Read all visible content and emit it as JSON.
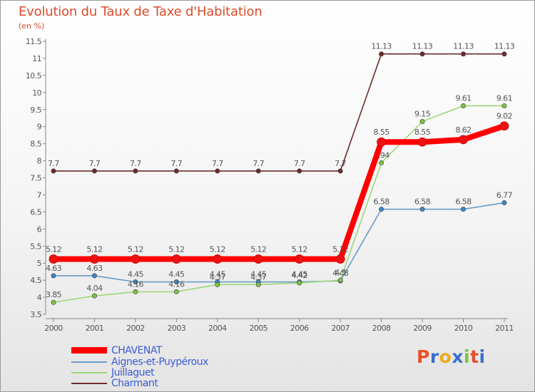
{
  "header": {
    "title": "Evolution du Taux de Taxe d'Habitation",
    "subtitle": "(en %)"
  },
  "logo": {
    "text": "Proxiti",
    "letters": [
      "P",
      "r",
      "o",
      "x",
      "i",
      "t",
      "i"
    ],
    "colors": [
      "#e8502a",
      "#3a6fd0",
      "#f2a81d",
      "#3a6fd0",
      "#7cc242",
      "#e8502a",
      "#3a6fd0"
    ]
  },
  "chart_data": {
    "type": "line",
    "title": "Evolution du Taux de Taxe d'Habitation",
    "ylabel": "(en %)",
    "xlabel": "",
    "categories": [
      "2000",
      "2001",
      "2002",
      "2003",
      "2004",
      "2005",
      "2006",
      "2007",
      "2008",
      "2009",
      "2010",
      "2011"
    ],
    "ylim": [
      3.5,
      11.5
    ],
    "yticks": [
      "3.5",
      "4",
      "4.5",
      "5",
      "5.5",
      "6",
      "6.5",
      "7",
      "7.5",
      "8",
      "8.5",
      "9",
      "9.5",
      "10",
      "10.5",
      "11",
      "11.5"
    ],
    "grid": false,
    "legend_position": "bottom-left",
    "series": [
      {
        "name": "Charmant",
        "color": "#6e2a2a",
        "marker_fill": "#6e2a2a",
        "values": [
          7.7,
          7.7,
          7.7,
          7.7,
          7.7,
          7.7,
          7.7,
          7.7,
          11.13,
          11.13,
          11.13,
          11.13
        ],
        "labels": [
          "7.7",
          "7.7",
          "7.7",
          "7.7",
          "7.7",
          "7.7",
          "7.7",
          "7.7",
          "11.13",
          "11.13",
          "11.13",
          "11.13"
        ]
      },
      {
        "name": "Aignes-et-Puypéroux",
        "color": "#6a9cc8",
        "marker_fill": "#3d86c6",
        "values": [
          4.63,
          4.63,
          4.45,
          4.45,
          4.45,
          4.45,
          4.45,
          4.48,
          6.58,
          6.58,
          6.58,
          6.77
        ],
        "labels": [
          "4.63",
          "4.63",
          "4.45",
          "4.45",
          "4.45",
          "4.45",
          "4.45",
          "4.48",
          "6.58",
          "6.58",
          "6.58",
          "6.77"
        ]
      },
      {
        "name": "Juillaguet",
        "color": "#9fd678",
        "marker_fill": "#7cc242",
        "values": [
          3.85,
          4.04,
          4.16,
          4.16,
          4.37,
          4.37,
          4.42,
          4.5,
          7.94,
          9.15,
          9.61,
          9.61
        ],
        "labels": [
          "3.85",
          "4.04",
          "4.16",
          "4.16",
          "4.37",
          "4.37",
          "4.42",
          "4.5",
          "7.94",
          "9.15",
          "9.61",
          "9.61"
        ]
      },
      {
        "name": "CHAVENAT",
        "color": "#ff0000",
        "marker_fill": "#ee1111",
        "values": [
          5.12,
          5.12,
          5.12,
          5.12,
          5.12,
          5.12,
          5.12,
          5.12,
          8.55,
          8.55,
          8.62,
          9.02
        ],
        "labels": [
          "5.12",
          "5.12",
          "5.12",
          "5.12",
          "5.12",
          "5.12",
          "5.12",
          "5.12",
          "8.55",
          "8.55",
          "8.62",
          "9.02"
        ]
      }
    ],
    "legend": [
      "CHAVENAT",
      "Aignes-et-Puypéroux",
      "Juillaguet",
      "Charmant"
    ]
  }
}
